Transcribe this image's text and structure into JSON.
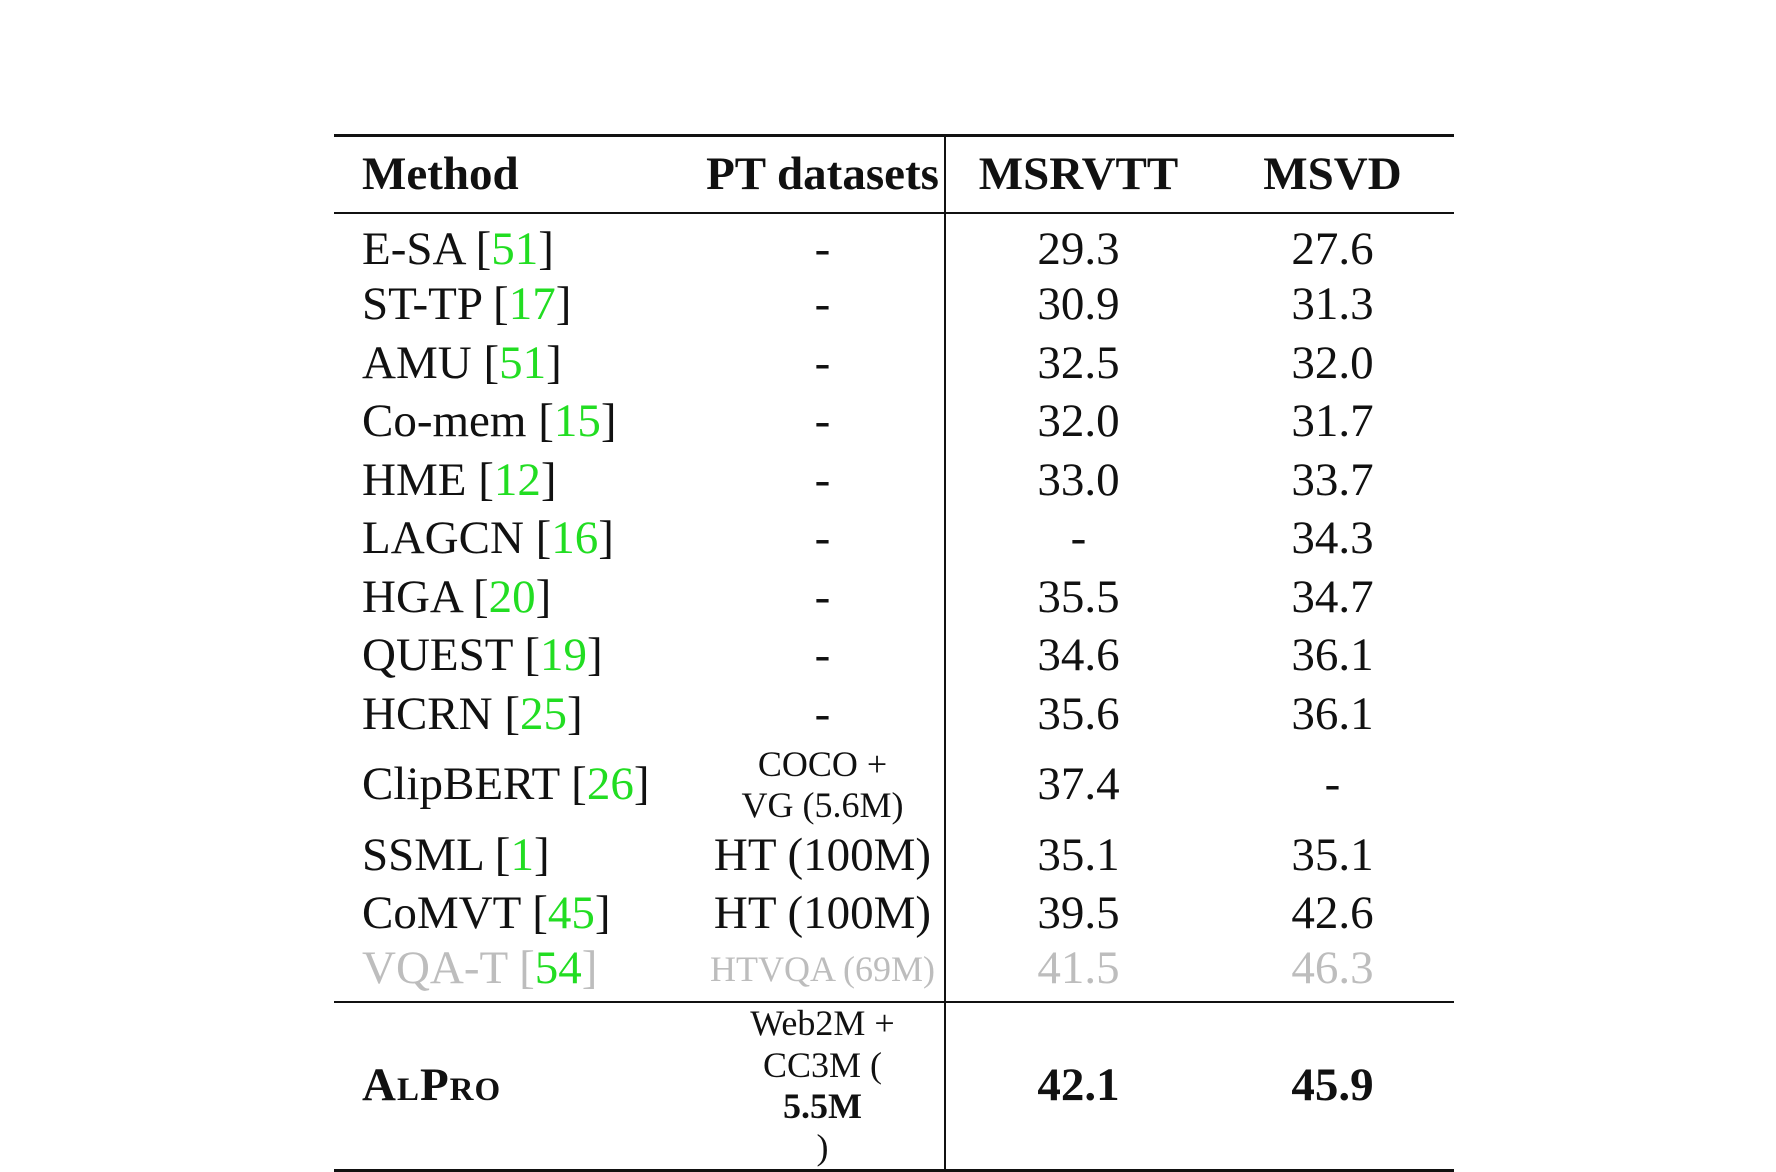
{
  "table": {
    "headers": {
      "method": "Method",
      "pt_datasets": "PT datasets",
      "msrvtt": "MSRVTT",
      "msvd": "MSVD"
    },
    "rows": [
      {
        "method": "E-SA",
        "ref": "51",
        "pt": "-",
        "msrvtt": "29.3",
        "msvd": "27.6"
      },
      {
        "method": "ST-TP",
        "ref": "17",
        "pt": "-",
        "msrvtt": "30.9",
        "msvd": "31.3"
      },
      {
        "method": "AMU",
        "ref": "51",
        "pt": "-",
        "msrvtt": "32.5",
        "msvd": "32.0"
      },
      {
        "method": "Co-mem",
        "ref": "15",
        "pt": "-",
        "msrvtt": "32.0",
        "msvd": "31.7"
      },
      {
        "method": "HME",
        "ref": "12",
        "pt": "-",
        "msrvtt": "33.0",
        "msvd": "33.7"
      },
      {
        "method": "LAGCN",
        "ref": "16",
        "pt": "-",
        "msrvtt": "-",
        "msvd": "34.3"
      },
      {
        "method": "HGA",
        "ref": "20",
        "pt": "-",
        "msrvtt": "35.5",
        "msvd": "34.7"
      },
      {
        "method": "QUEST",
        "ref": "19",
        "pt": "-",
        "msrvtt": "34.6",
        "msvd": "36.1"
      },
      {
        "method": "HCRN",
        "ref": "25",
        "pt": "-",
        "msrvtt": "35.6",
        "msvd": "36.1"
      },
      {
        "method": "ClipBERT",
        "ref": "26",
        "pt_line1": "COCO +",
        "pt_line2": "VG (5.6M)",
        "msrvtt": "37.4",
        "msvd": "-"
      },
      {
        "method": "SSML",
        "ref": "1",
        "pt": "HT (100M)",
        "msrvtt": "35.1",
        "msvd": "35.1"
      },
      {
        "method": "CoMVT",
        "ref": "45",
        "pt": "HT (100M)",
        "msrvtt": "39.5",
        "msvd": "42.6"
      },
      {
        "method": "VQA-T",
        "ref": "54",
        "pt": "HTVQA (69M)",
        "msrvtt": "41.5",
        "msvd": "46.3"
      }
    ],
    "ours": {
      "method": "AlPro",
      "pt_line1": "Web2M +",
      "pt_line2_prefix": "CC3M (",
      "pt_line2_bold": "5.5M",
      "pt_line2_suffix": ")",
      "msrvtt": "42.1",
      "msvd": "45.9"
    }
  }
}
